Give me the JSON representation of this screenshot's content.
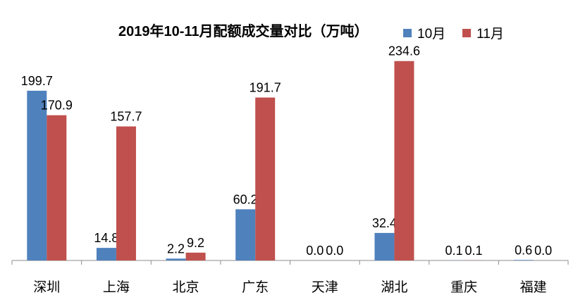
{
  "chart_data": {
    "type": "bar",
    "title": "2019年10-11月配额成交量对比（万吨）",
    "categories": [
      "深圳",
      "上海",
      "北京",
      "广东",
      "天津",
      "湖北",
      "重庆",
      "福建"
    ],
    "series": [
      {
        "name": "10月",
        "color": "#4f81bd",
        "values": [
          199.7,
          14.8,
          2.2,
          60.2,
          0.0,
          32.4,
          0.1,
          0.6
        ]
      },
      {
        "name": "11月",
        "color": "#c0504d",
        "values": [
          170.9,
          157.7,
          9.2,
          191.7,
          0.0,
          234.6,
          0.1,
          0.0
        ]
      }
    ],
    "ylim": [
      0,
      270
    ],
    "grid": false,
    "legend": "top-right",
    "data_labels": true
  }
}
